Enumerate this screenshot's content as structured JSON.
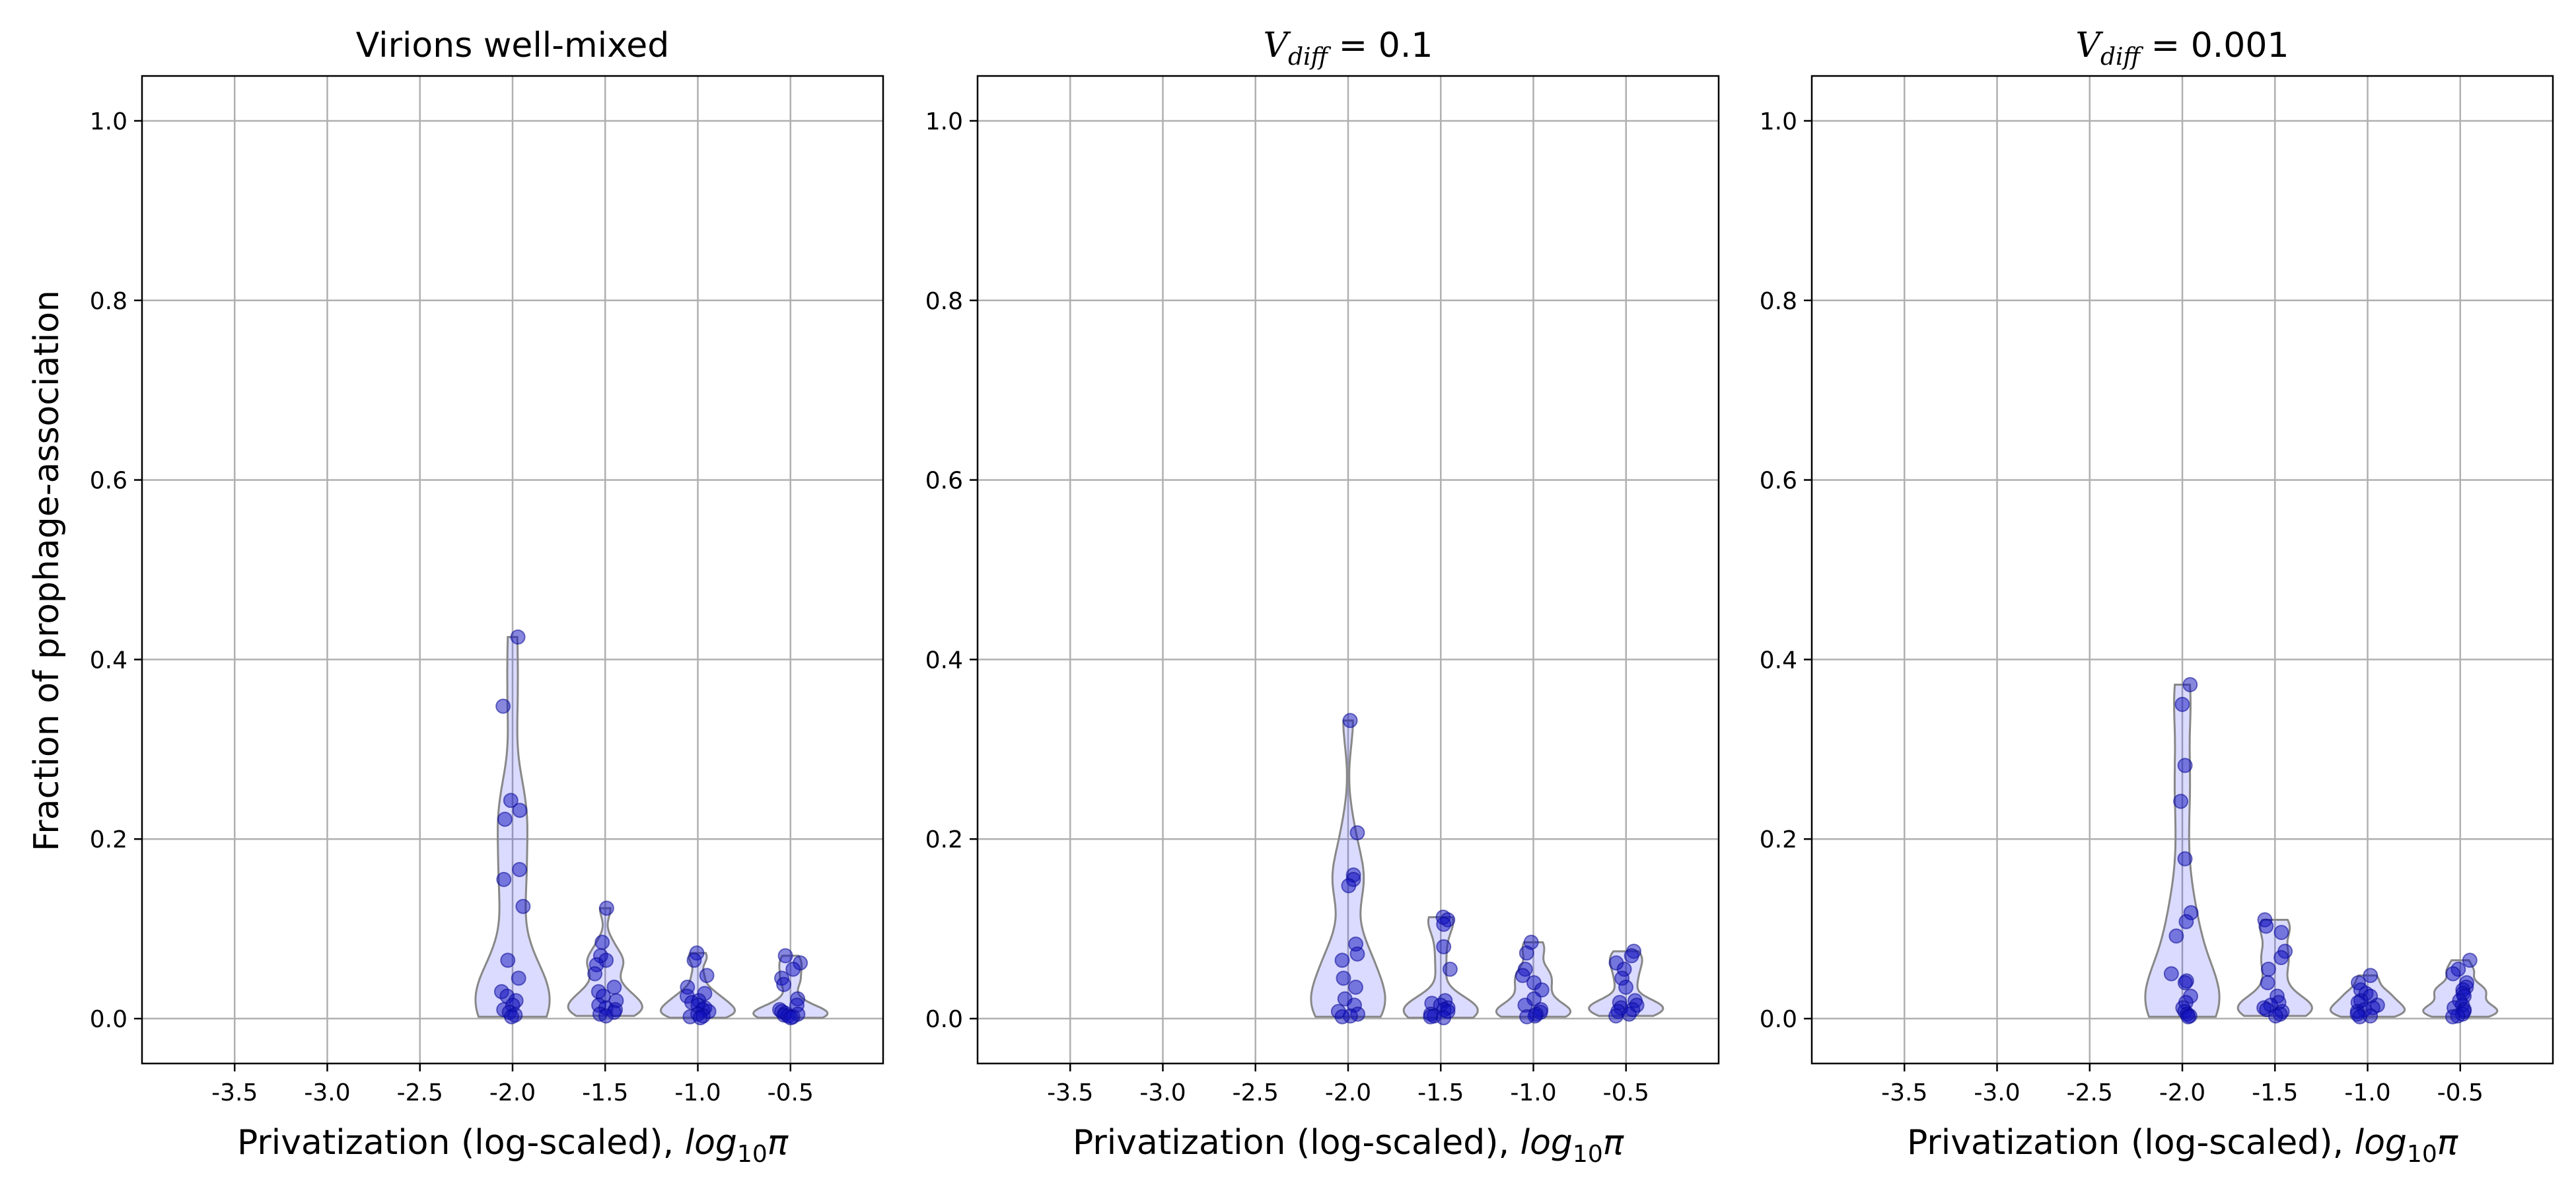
{
  "figure": {
    "ylabel": "Fraction of prophage-association"
  },
  "chart_data": [
    {
      "type": "violin",
      "title": {
        "base": "Virions well-mixed",
        "sub": "",
        "rest": ""
      },
      "xlabel": {
        "text": "Privatization (log-scaled), ",
        "math_base": "log",
        "math_sub": "10",
        "math_sym": "π"
      },
      "x_ticks": [
        -3.5,
        -3.0,
        -2.5,
        -2.0,
        -1.5,
        -1.0,
        -0.5
      ],
      "x_tick_labels": [
        "-3.5",
        "-3.0",
        "-2.5",
        "-2.0",
        "-1.5",
        "-1.0",
        "-0.5"
      ],
      "y_ticks": [
        0.0,
        0.2,
        0.4,
        0.6,
        0.8,
        1.0
      ],
      "y_tick_labels": [
        "0.0",
        "0.2",
        "0.4",
        "0.6",
        "0.8",
        "1.0"
      ],
      "xlim": [
        -4.0,
        0.0
      ],
      "ylim": [
        -0.05,
        1.05
      ],
      "grid": true,
      "groups": [
        {
          "x": -2.0,
          "points": [
            0.425,
            0.348,
            0.243,
            0.232,
            0.222,
            0.166,
            0.155,
            0.125,
            0.065,
            0.045,
            0.03,
            0.025,
            0.02,
            0.015,
            0.01,
            0.007,
            0.004,
            0.002
          ]
        },
        {
          "x": -1.5,
          "points": [
            0.123,
            0.085,
            0.07,
            0.065,
            0.06,
            0.05,
            0.035,
            0.03,
            0.025,
            0.02,
            0.015,
            0.012,
            0.01,
            0.007,
            0.005,
            0.003
          ]
        },
        {
          "x": -1.0,
          "points": [
            0.073,
            0.065,
            0.048,
            0.035,
            0.028,
            0.025,
            0.02,
            0.018,
            0.015,
            0.012,
            0.01,
            0.008,
            0.005,
            0.003,
            0.002,
            0.001
          ]
        },
        {
          "x": -0.5,
          "points": [
            0.07,
            0.062,
            0.055,
            0.045,
            0.038,
            0.022,
            0.015,
            0.01,
            0.008,
            0.006,
            0.005,
            0.004,
            0.003,
            0.002,
            0.001
          ]
        }
      ]
    },
    {
      "type": "violin",
      "title": {
        "base": "V",
        "sub": "diff",
        "rest": " = 0.1"
      },
      "xlabel": {
        "text": "Privatization (log-scaled), ",
        "math_base": "log",
        "math_sub": "10",
        "math_sym": "π"
      },
      "x_ticks": [
        -3.5,
        -3.0,
        -2.5,
        -2.0,
        -1.5,
        -1.0,
        -0.5
      ],
      "x_tick_labels": [
        "-3.5",
        "-3.0",
        "-2.5",
        "-2.0",
        "-1.5",
        "-1.0",
        "-0.5"
      ],
      "y_ticks": [
        0.0,
        0.2,
        0.4,
        0.6,
        0.8,
        1.0
      ],
      "y_tick_labels": [
        "0.0",
        "0.2",
        "0.4",
        "0.6",
        "0.8",
        "1.0"
      ],
      "xlim": [
        -4.0,
        0.0
      ],
      "ylim": [
        -0.05,
        1.05
      ],
      "grid": true,
      "groups": [
        {
          "x": -2.0,
          "points": [
            0.332,
            0.207,
            0.16,
            0.155,
            0.148,
            0.083,
            0.072,
            0.065,
            0.045,
            0.035,
            0.022,
            0.015,
            0.008,
            0.005,
            0.003,
            0.002
          ]
        },
        {
          "x": -1.5,
          "points": [
            0.113,
            0.11,
            0.105,
            0.08,
            0.055,
            0.02,
            0.017,
            0.015,
            0.012,
            0.01,
            0.008,
            0.005,
            0.003,
            0.002,
            0.001
          ]
        },
        {
          "x": -1.0,
          "points": [
            0.085,
            0.073,
            0.055,
            0.048,
            0.04,
            0.032,
            0.022,
            0.015,
            0.01,
            0.007,
            0.005,
            0.003,
            0.002
          ]
        },
        {
          "x": -0.5,
          "points": [
            0.075,
            0.07,
            0.062,
            0.055,
            0.045,
            0.035,
            0.02,
            0.018,
            0.015,
            0.012,
            0.01,
            0.008,
            0.005,
            0.003
          ]
        }
      ]
    },
    {
      "type": "violin",
      "title": {
        "base": "V",
        "sub": "diff",
        "rest": " = 0.001"
      },
      "xlabel": {
        "text": "Privatization (log-scaled), ",
        "math_base": "log",
        "math_sub": "10",
        "math_sym": "π"
      },
      "x_ticks": [
        -3.5,
        -3.0,
        -2.5,
        -2.0,
        -1.5,
        -1.0,
        -0.5
      ],
      "x_tick_labels": [
        "-3.5",
        "-3.0",
        "-2.5",
        "-2.0",
        "-1.5",
        "-1.0",
        "-0.5"
      ],
      "y_ticks": [
        0.0,
        0.2,
        0.4,
        0.6,
        0.8,
        1.0
      ],
      "y_tick_labels": [
        "0.0",
        "0.2",
        "0.4",
        "0.6",
        "0.8",
        "1.0"
      ],
      "xlim": [
        -4.0,
        0.0
      ],
      "ylim": [
        -0.05,
        1.05
      ],
      "grid": true,
      "groups": [
        {
          "x": -2.0,
          "points": [
            0.372,
            0.35,
            0.282,
            0.242,
            0.178,
            0.118,
            0.108,
            0.092,
            0.05,
            0.042,
            0.04,
            0.025,
            0.018,
            0.012,
            0.008,
            0.005,
            0.003,
            0.002
          ]
        },
        {
          "x": -1.5,
          "points": [
            0.11,
            0.103,
            0.096,
            0.075,
            0.068,
            0.055,
            0.04,
            0.025,
            0.018,
            0.015,
            0.012,
            0.01,
            0.008,
            0.005,
            0.003
          ]
        },
        {
          "x": -1.0,
          "points": [
            0.048,
            0.04,
            0.032,
            0.028,
            0.025,
            0.02,
            0.018,
            0.015,
            0.012,
            0.01,
            0.008,
            0.005,
            0.003,
            0.002
          ]
        },
        {
          "x": -0.5,
          "points": [
            0.065,
            0.055,
            0.05,
            0.04,
            0.035,
            0.032,
            0.028,
            0.025,
            0.02,
            0.015,
            0.012,
            0.01,
            0.008,
            0.005,
            0.003,
            0.002
          ]
        }
      ]
    }
  ]
}
